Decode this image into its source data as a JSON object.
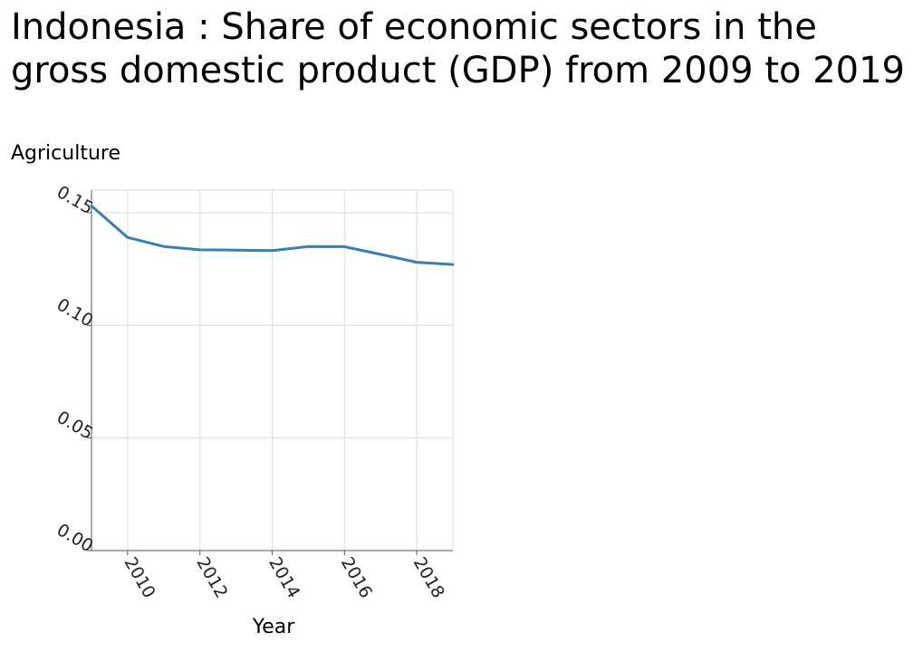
{
  "chart_data": {
    "type": "line",
    "title": "Indonesia : Share of economic sectors in the gross domestic product (GDP) from 2009 to 2019",
    "ylabel": "Agriculture",
    "xlabel": "Year",
    "xlim": [
      2009,
      2019
    ],
    "ylim": [
      0,
      0.16
    ],
    "x_ticks": [
      "2010",
      "2012",
      "2014",
      "2016",
      "2018"
    ],
    "y_ticks": [
      "0.00",
      "0.05",
      "0.10",
      "0.15"
    ],
    "grid": true,
    "series": [
      {
        "color": "#3a7fb0",
        "x": [
          2009,
          2010,
          2011,
          2012,
          2013,
          2014,
          2015,
          2016,
          2017,
          2018,
          2019
        ],
        "y": [
          0.153,
          0.139,
          0.135,
          0.1335,
          0.1334,
          0.1332,
          0.135,
          0.1349,
          0.1315,
          0.128,
          0.127
        ]
      }
    ]
  }
}
